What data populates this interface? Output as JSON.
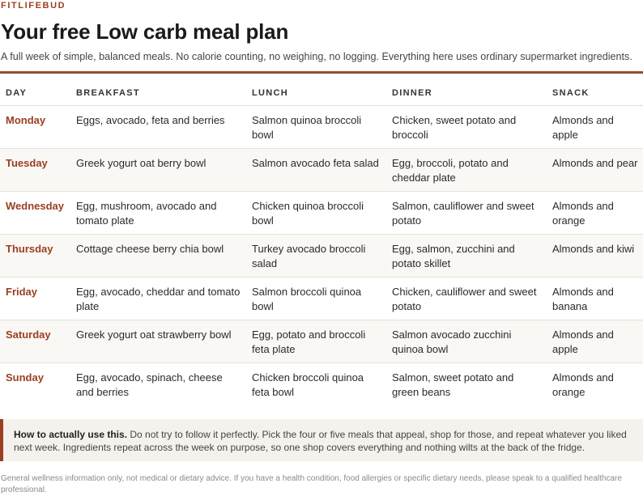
{
  "brand": "FITLIFEBUD",
  "title": "Your free Low carb meal plan",
  "subtitle": "A full week of simple, balanced meals. No calorie counting, no weighing, no logging. Everything here uses ordinary supermarket ingredients.",
  "table": {
    "headers": {
      "day": "DAY",
      "breakfast": "BREAKFAST",
      "lunch": "LUNCH",
      "dinner": "DINNER",
      "snack": "SNACK"
    },
    "rows": [
      {
        "day": "Monday",
        "breakfast": "Eggs, avocado, feta and berries",
        "lunch": "Salmon quinoa broccoli bowl",
        "dinner": "Chicken, sweet potato and broccoli",
        "snack": "Almonds and apple"
      },
      {
        "day": "Tuesday",
        "breakfast": "Greek yogurt oat berry bowl",
        "lunch": "Salmon avocado feta salad",
        "dinner": "Egg, broccoli, potato and cheddar plate",
        "snack": "Almonds and pear"
      },
      {
        "day": "Wednesday",
        "breakfast": "Egg, mushroom, avocado and tomato plate",
        "lunch": "Chicken quinoa broccoli bowl",
        "dinner": "Salmon, cauliflower and sweet potato",
        "snack": "Almonds and orange"
      },
      {
        "day": "Thursday",
        "breakfast": "Cottage cheese berry chia bowl",
        "lunch": "Turkey avocado broccoli salad",
        "dinner": "Egg, salmon, zucchini and potato skillet",
        "snack": "Almonds and kiwi"
      },
      {
        "day": "Friday",
        "breakfast": "Egg, avocado, cheddar and tomato plate",
        "lunch": "Salmon broccoli quinoa bowl",
        "dinner": "Chicken, cauliflower and sweet potato",
        "snack": "Almonds and banana"
      },
      {
        "day": "Saturday",
        "breakfast": "Greek yogurt oat strawberry bowl",
        "lunch": "Egg, potato and broccoli feta plate",
        "dinner": "Salmon avocado zucchini quinoa bowl",
        "snack": "Almonds and apple"
      },
      {
        "day": "Sunday",
        "breakfast": "Egg, avocado, spinach, cheese and berries",
        "lunch": "Chicken broccoli quinoa feta bowl",
        "dinner": "Salmon, sweet potato and green beans",
        "snack": "Almonds and orange"
      }
    ]
  },
  "note": {
    "heading": "How to actually use this.",
    "body": "Do not try to follow it perfectly. Pick the four or five meals that appeal, shop for those, and repeat whatever you liked next week. Ingredients repeat across the week on purpose, so one shop covers everything and nothing wilts at the back of the fridge."
  },
  "disclaimer": "General wellness information only, not medical or dietary advice. If you have a health condition, food allergies or specific dietary needs, please speak to a qualified healthcare professional.",
  "colors": {
    "accent": "#9a3f22",
    "rule": "#9a4a2c",
    "note_bg": "#f5f2ed",
    "row_alt": "#faf8f4"
  }
}
